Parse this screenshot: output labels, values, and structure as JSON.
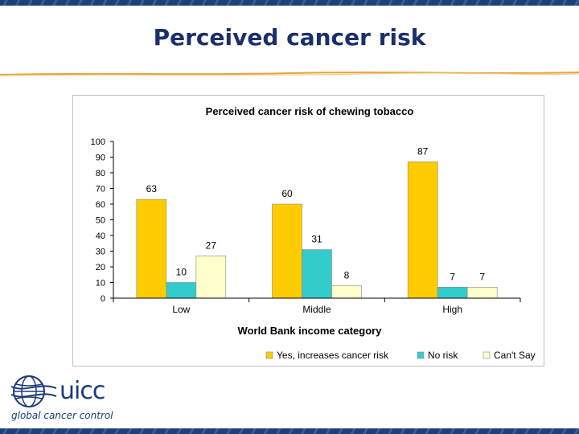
{
  "slide": {
    "title": "Perceived cancer risk"
  },
  "logo": {
    "name": "uicc",
    "tagline": "global cancer control"
  },
  "colors": {
    "title": "#1a2f6b",
    "rule": "#e8a43a",
    "border": "#1f3f7a"
  },
  "chart_data": {
    "type": "bar",
    "title": "Perceived cancer risk of chewing tobacco",
    "xlabel": "World Bank income category",
    "ylabel": "",
    "ylim": [
      0,
      100
    ],
    "yticks": [
      0,
      10,
      20,
      30,
      40,
      50,
      60,
      70,
      80,
      90,
      100
    ],
    "categories": [
      "Low",
      "Middle",
      "High"
    ],
    "series": [
      {
        "name": "Yes, increases cancer risk",
        "color": "#ffcc00",
        "values": [
          63,
          60,
          87
        ]
      },
      {
        "name": "No risk",
        "color": "#33cccc",
        "values": [
          10,
          31,
          7
        ]
      },
      {
        "name": "Can't Say",
        "color": "#ffffcc",
        "values": [
          27,
          8,
          7
        ]
      }
    ],
    "grid": false,
    "legend_position": "bottom-right"
  }
}
